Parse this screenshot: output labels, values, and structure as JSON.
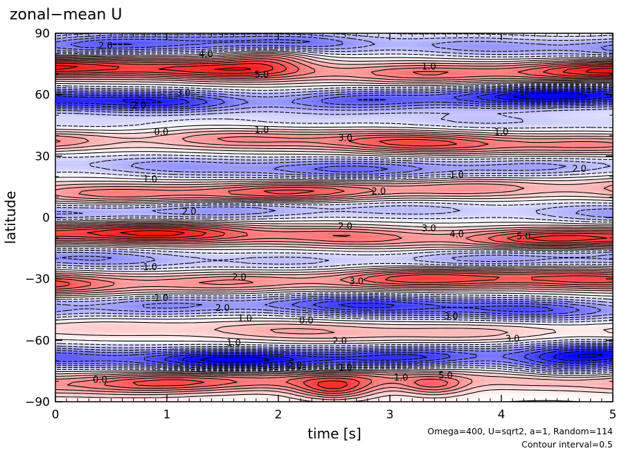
{
  "chart_data": {
    "type": "heatmap",
    "title": "zonal−mean U",
    "xlabel": "time [s]",
    "ylabel": "latitude",
    "xlim": [
      0,
      5
    ],
    "ylim": [
      -90,
      90
    ],
    "x_ticks": [
      "0",
      "1",
      "2",
      "3",
      "4",
      "5"
    ],
    "x_tick_values": [
      0,
      1,
      2,
      3,
      4,
      5
    ],
    "y_ticks": [
      "90",
      "60",
      "30",
      "0",
      "−30",
      "−60",
      "−90"
    ],
    "y_tick_values": [
      90,
      60,
      30,
      0,
      -30,
      -60,
      -90
    ],
    "annotations": [
      "Omega=400, U=sqrt2, a=1, Random=114",
      "Contour interval=0.5"
    ],
    "contour_interval": 0.5,
    "colormap": {
      "negative": "#0000ff",
      "zero": "#ffffff",
      "positive": "#ff0000"
    },
    "bands": [
      {
        "lat": 84,
        "amp": -3.0
      },
      {
        "lat": 72,
        "amp": 4.0
      },
      {
        "lat": 58,
        "amp": -4.5
      },
      {
        "lat": 46,
        "amp": -1.0
      },
      {
        "lat": 37,
        "amp": 3.0
      },
      {
        "lat": 25,
        "amp": -2.5
      },
      {
        "lat": 13,
        "amp": 3.0
      },
      {
        "lat": 3,
        "amp": -2.0
      },
      {
        "lat": -9,
        "amp": 4.0
      },
      {
        "lat": -20,
        "amp": -2.0
      },
      {
        "lat": -31,
        "amp": 3.5
      },
      {
        "lat": -44,
        "amp": -3.5
      },
      {
        "lat": -55,
        "amp": 1.5
      },
      {
        "lat": -68,
        "amp": -4.5
      },
      {
        "lat": -80,
        "amp": 3.0
      }
    ],
    "contour_labels": [
      {
        "text": "2.0",
        "x": 0.45,
        "y": 84
      },
      {
        "text": "4.0",
        "x": 1.35,
        "y": 80
      },
      {
        "text": "5.0",
        "x": 1.85,
        "y": 70
      },
      {
        "text": "1.0",
        "x": 3.35,
        "y": 74
      },
      {
        "text": "3.0",
        "x": 1.15,
        "y": 61
      },
      {
        "text": "2.0",
        "x": 0.75,
        "y": 55
      },
      {
        "text": "0.0",
        "x": 0.95,
        "y": 42
      },
      {
        "text": "1.0",
        "x": 1.85,
        "y": 43
      },
      {
        "text": "3.0",
        "x": 2.6,
        "y": 39
      },
      {
        "text": "1.0",
        "x": 4.0,
        "y": 42
      },
      {
        "text": "2.0",
        "x": 4.7,
        "y": 24
      },
      {
        "text": "1.0",
        "x": 0.85,
        "y": 19
      },
      {
        "text": "2.0",
        "x": 2.9,
        "y": 13
      },
      {
        "text": "1.0",
        "x": 3.6,
        "y": 21
      },
      {
        "text": "2.0",
        "x": 1.2,
        "y": 3
      },
      {
        "text": "2.0",
        "x": 2.6,
        "y": -4
      },
      {
        "text": "3.0",
        "x": 3.35,
        "y": -5
      },
      {
        "text": "4.0",
        "x": 3.6,
        "y": -8
      },
      {
        "text": "5.0",
        "x": 4.2,
        "y": -9
      },
      {
        "text": "1.0",
        "x": 0.85,
        "y": -24
      },
      {
        "text": "2.0",
        "x": 1.65,
        "y": -29
      },
      {
        "text": "3.0",
        "x": 2.7,
        "y": -31
      },
      {
        "text": "1.0",
        "x": 0.95,
        "y": -39
      },
      {
        "text": "2.0",
        "x": 1.5,
        "y": -44
      },
      {
        "text": "1.0",
        "x": 1.7,
        "y": -49
      },
      {
        "text": "3.0",
        "x": 3.55,
        "y": -48
      },
      {
        "text": "0.0",
        "x": 2.25,
        "y": -50
      },
      {
        "text": "1.0",
        "x": 1.6,
        "y": -61
      },
      {
        "text": "2.0",
        "x": 2.55,
        "y": -60
      },
      {
        "text": "3.0",
        "x": 4.1,
        "y": -59
      },
      {
        "text": "2.0",
        "x": 2.15,
        "y": -72
      },
      {
        "text": "1.0",
        "x": 2.6,
        "y": -73
      },
      {
        "text": "5.0",
        "x": 3.5,
        "y": -77
      },
      {
        "text": "1.0",
        "x": 3.1,
        "y": -78
      },
      {
        "text": "0.0",
        "x": 0.4,
        "y": -79
      }
    ]
  }
}
